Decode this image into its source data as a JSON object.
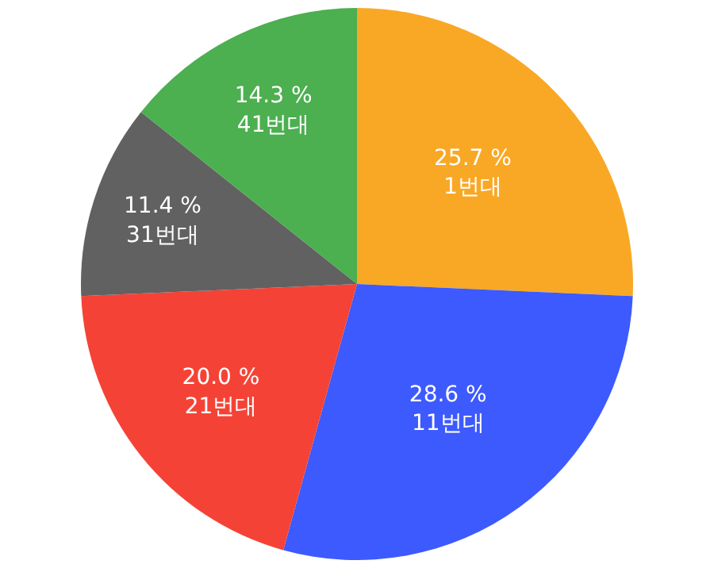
{
  "chart_data": {
    "type": "pie",
    "categories": [
      "1번대",
      "11번대",
      "21번대",
      "31번대",
      "41번대"
    ],
    "values": [
      25.7,
      28.6,
      20.0,
      11.4,
      14.3
    ],
    "value_labels": [
      "25.7 %",
      "28.6 %",
      "20.0 %",
      "11.4 %",
      "14.3 %"
    ],
    "colors": [
      "#f9a825",
      "#3d5afe",
      "#f44336",
      "#616161",
      "#4caf50"
    ],
    "legend": false
  }
}
